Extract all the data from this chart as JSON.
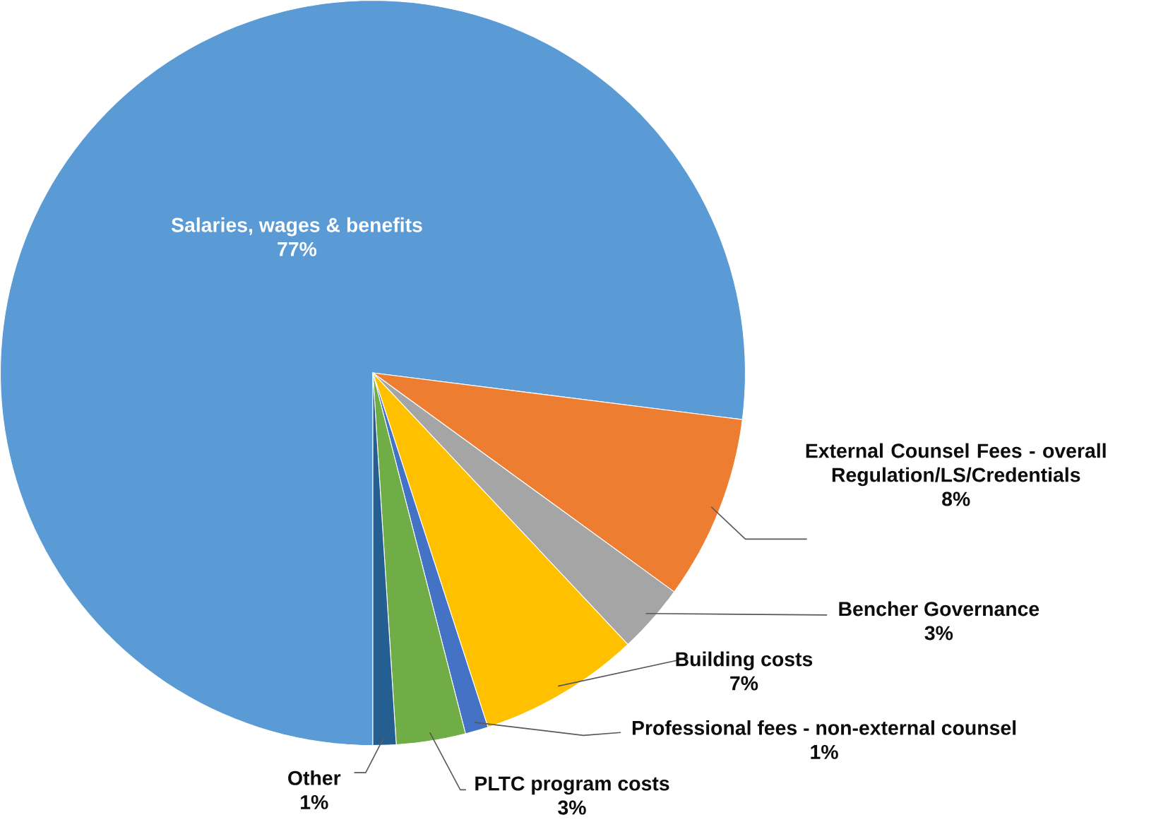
{
  "chart_data": {
    "type": "pie",
    "categories": [
      "Salaries, wages & benefits",
      "External Counsel Fees - overall Regulation/LS/Credentials",
      "Bencher Governance",
      "Building costs",
      "Professional fees - non-external counsel",
      "PLTC program costs",
      "Other"
    ],
    "values": [
      77,
      8,
      3,
      7,
      1,
      3,
      1
    ],
    "value_labels": [
      "77%",
      "8%",
      "3%",
      "7%",
      "1%",
      "3%",
      "1%"
    ],
    "colors": [
      "#5b9bd5",
      "#ed7d31",
      "#a5a5a5",
      "#ffc000",
      "#4472c4",
      "#70ad47",
      "#255e91"
    ]
  }
}
